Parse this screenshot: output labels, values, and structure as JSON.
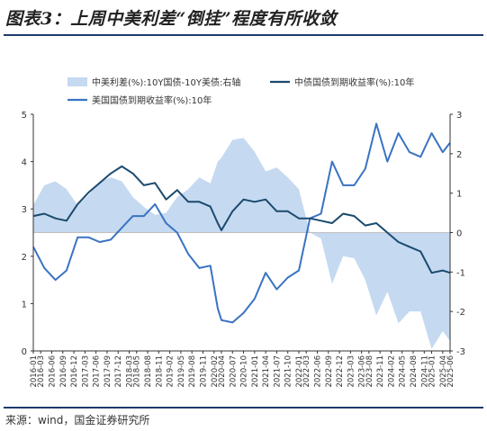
{
  "header": {
    "title": "图表3：上周中美利差“倒挂”程度有所收敛"
  },
  "footer": {
    "source": "来源：wind，国金证券研究所"
  },
  "chart_data": {
    "type": "line",
    "x_tick_labels": [
      "2016-01",
      "2016-03",
      "2016-06",
      "2016-09",
      "2016-12",
      "2017-03",
      "2017-06",
      "2017-09",
      "2017-12",
      "2018-03",
      "2018-05",
      "2018-08",
      "2018-11",
      "2019-02",
      "2019-05",
      "2019-08",
      "2019-11",
      "2020-02",
      "2020-04",
      "2020-07",
      "2020-10",
      "2021-01",
      "2021-04",
      "2021-07",
      "2021-10",
      "2022-01",
      "2022-03",
      "2022-06",
      "2022-09",
      "2022-12",
      "2023-03",
      "2023-06",
      "2023-08",
      "2023-11",
      "2024-02",
      "2024-05",
      "2024-08",
      "2024-11",
      "2025-01",
      "2025-04",
      "2025-06"
    ],
    "left_axis": {
      "ylim": [
        0,
        5
      ],
      "ticks": [
        "0",
        "1",
        "2",
        "3",
        "4",
        "5"
      ]
    },
    "right_axis": {
      "ylim": [
        -3,
        3
      ],
      "ticks": [
        "-3",
        "-2",
        "-1",
        "0",
        "1",
        "2",
        "3"
      ]
    },
    "legend": [
      {
        "name": "中美利差(%):10Y国债-10Y美债:右轴",
        "color": "#c5d9f1",
        "kind": "area"
      },
      {
        "name": "中债国债到期收益率(%):10年",
        "color": "#1b4a6e",
        "kind": "line"
      },
      {
        "name": "美国国债到期收益率(%):10年",
        "color": "#3a73c2",
        "kind": "line"
      }
    ],
    "x_dates": [
      "2016-01",
      "2016-04",
      "2016-07",
      "2016-10",
      "2017-01",
      "2017-04",
      "2017-07",
      "2017-10",
      "2018-01",
      "2018-04",
      "2018-07",
      "2018-10",
      "2019-01",
      "2019-04",
      "2019-07",
      "2019-10",
      "2020-01",
      "2020-03",
      "2020-04",
      "2020-07",
      "2020-10",
      "2021-01",
      "2021-04",
      "2021-07",
      "2021-10",
      "2022-01",
      "2022-04",
      "2022-07",
      "2022-10",
      "2023-01",
      "2023-04",
      "2023-07",
      "2023-10",
      "2024-01",
      "2024-04",
      "2024-07",
      "2024-10",
      "2025-01",
      "2025-04",
      "2025-06"
    ],
    "series": [
      {
        "name": "中债国债到期收益率(%):10年",
        "axis": "left",
        "values": [
          2.85,
          2.9,
          2.8,
          2.75,
          3.1,
          3.35,
          3.55,
          3.75,
          3.9,
          3.75,
          3.5,
          3.55,
          3.2,
          3.4,
          3.15,
          3.15,
          3.05,
          2.7,
          2.55,
          2.95,
          3.2,
          3.15,
          3.2,
          2.95,
          2.95,
          2.8,
          2.8,
          2.75,
          2.7,
          2.9,
          2.85,
          2.65,
          2.7,
          2.5,
          2.3,
          2.2,
          2.1,
          1.65,
          1.7,
          1.65
        ]
      },
      {
        "name": "美国国债到期收益率(%):10年",
        "axis": "left",
        "values": [
          2.2,
          1.75,
          1.5,
          1.7,
          2.4,
          2.4,
          2.3,
          2.35,
          2.6,
          2.85,
          2.85,
          3.1,
          2.7,
          2.5,
          2.05,
          1.75,
          1.8,
          0.9,
          0.65,
          0.6,
          0.8,
          1.1,
          1.65,
          1.3,
          1.55,
          1.7,
          2.8,
          2.9,
          4.0,
          3.5,
          3.5,
          3.85,
          4.8,
          4.0,
          4.6,
          4.2,
          4.1,
          4.6,
          4.2,
          4.4
        ]
      },
      {
        "name": "中美利差(%):10Y国债-10Y美债:右轴",
        "axis": "right",
        "kind": "area",
        "values": [
          0.7,
          1.2,
          1.3,
          1.1,
          0.7,
          0.95,
          1.3,
          1.4,
          1.3,
          0.9,
          0.65,
          0.45,
          0.5,
          0.9,
          1.1,
          1.4,
          1.25,
          1.8,
          1.9,
          2.35,
          2.4,
          2.05,
          1.55,
          1.65,
          1.4,
          1.1,
          0.0,
          -0.15,
          -1.3,
          -0.6,
          -0.65,
          -1.2,
          -2.1,
          -1.5,
          -2.3,
          -2.0,
          -2.0,
          -2.95,
          -2.5,
          -2.75
        ]
      }
    ]
  }
}
